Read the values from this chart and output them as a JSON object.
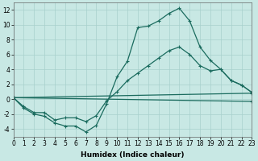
{
  "xlabel": "Humidex (Indice chaleur)",
  "bg_color": "#c8e8e4",
  "line_color": "#1a6b5e",
  "grid_color": "#a8d0cc",
  "xlim": [
    0,
    23
  ],
  "ylim": [
    -5,
    13
  ],
  "xticks": [
    0,
    1,
    2,
    3,
    4,
    5,
    6,
    7,
    8,
    9,
    10,
    11,
    12,
    13,
    14,
    15,
    16,
    17,
    18,
    19,
    20,
    21,
    22,
    23
  ],
  "yticks": [
    -4,
    -2,
    0,
    2,
    4,
    6,
    8,
    10,
    12
  ],
  "series1_x": [
    0,
    1,
    2,
    3,
    4,
    5,
    6,
    7,
    8,
    9,
    10,
    11,
    12,
    13,
    14,
    15,
    16,
    17,
    18,
    19,
    20,
    21,
    22,
    23
  ],
  "series1_y": [
    0.2,
    -1.2,
    -2.0,
    -2.3,
    -3.2,
    -3.6,
    -3.6,
    -4.4,
    -3.5,
    -0.6,
    3.0,
    5.1,
    9.6,
    9.8,
    10.5,
    11.5,
    12.2,
    10.5,
    7.0,
    5.2,
    4.0,
    2.5,
    1.9,
    0.9
  ],
  "series2_x": [
    0,
    1,
    2,
    3,
    4,
    5,
    6,
    7,
    8,
    9,
    10,
    11,
    12,
    13,
    14,
    15,
    16,
    17,
    18,
    19,
    20,
    21,
    22,
    23
  ],
  "series2_y": [
    0.2,
    -1.0,
    -1.8,
    -1.8,
    -2.8,
    -2.5,
    -2.5,
    -3.0,
    -2.2,
    -0.2,
    1.0,
    2.5,
    3.5,
    4.5,
    5.5,
    6.5,
    7.0,
    6.0,
    4.5,
    3.8,
    4.0,
    2.5,
    1.9,
    0.9
  ],
  "series3_x": [
    0,
    23
  ],
  "series3_y": [
    0.2,
    0.8
  ],
  "series4_x": [
    0,
    23
  ],
  "series4_y": [
    0.2,
    -0.3
  ],
  "lw": 0.9,
  "marker_size": 3.5,
  "marker_lw": 0.8,
  "tick_fontsize": 5.5,
  "xlabel_fontsize": 6.5
}
